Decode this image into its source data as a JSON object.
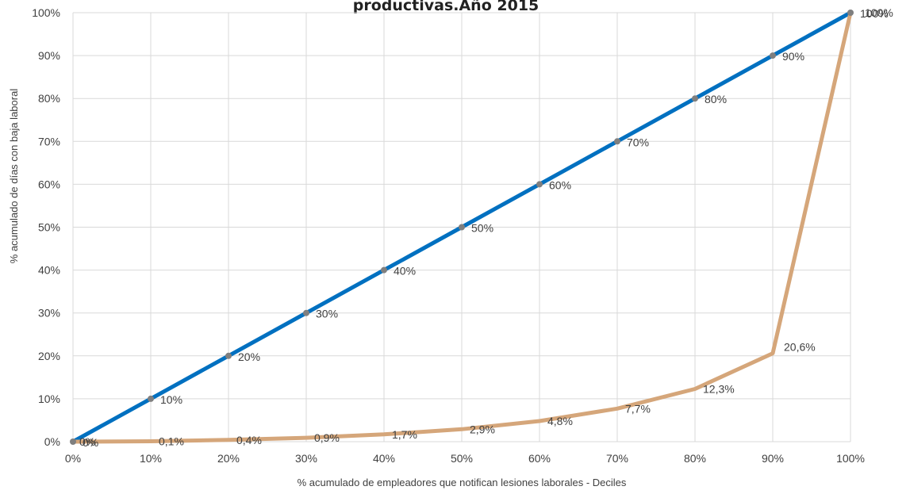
{
  "chart_data": {
    "type": "line",
    "title": "productivas.Año 2015",
    "xlabel": "% acumulado de empleadores que notifican lesiones laborales - Deciles",
    "ylabel": "% acumulado de días con baja laboral",
    "x": [
      0,
      10,
      20,
      30,
      40,
      50,
      60,
      70,
      80,
      90,
      100
    ],
    "x_tick_labels": [
      "0%",
      "10%",
      "20%",
      "30%",
      "40%",
      "50%",
      "60%",
      "70%",
      "80%",
      "90%",
      "100%"
    ],
    "y_tick_labels": [
      "0%",
      "10%",
      "20%",
      "30%",
      "40%",
      "50%",
      "60%",
      "70%",
      "80%",
      "90%",
      "100%"
    ],
    "xlim": [
      0,
      100
    ],
    "ylim": [
      0,
      100
    ],
    "grid": true,
    "series": [
      {
        "values": [
          0,
          10,
          20,
          30,
          40,
          50,
          60,
          70,
          80,
          90,
          100
        ],
        "labels": [
          "0%",
          "10%",
          "20%",
          "30%",
          "40%",
          "50%",
          "60%",
          "70%",
          "80%",
          "90%",
          "100%"
        ],
        "color": "#0070C0",
        "markers": true
      },
      {
        "values": [
          0,
          0.1,
          0.4,
          0.9,
          1.7,
          2.9,
          4.8,
          7.7,
          12.3,
          20.6,
          100
        ],
        "labels": [
          "0%",
          "0,1%",
          "0,4%",
          "0,9%",
          "1,7%",
          "2,9%",
          "4,8%",
          "7,7%",
          "12,3%",
          "20,6%",
          "100%"
        ],
        "color": "#D5A67A",
        "markers": false
      }
    ]
  },
  "colors": {
    "grid": "#D9D9D9",
    "marker": "#7F7F7F",
    "text": "#404040"
  }
}
